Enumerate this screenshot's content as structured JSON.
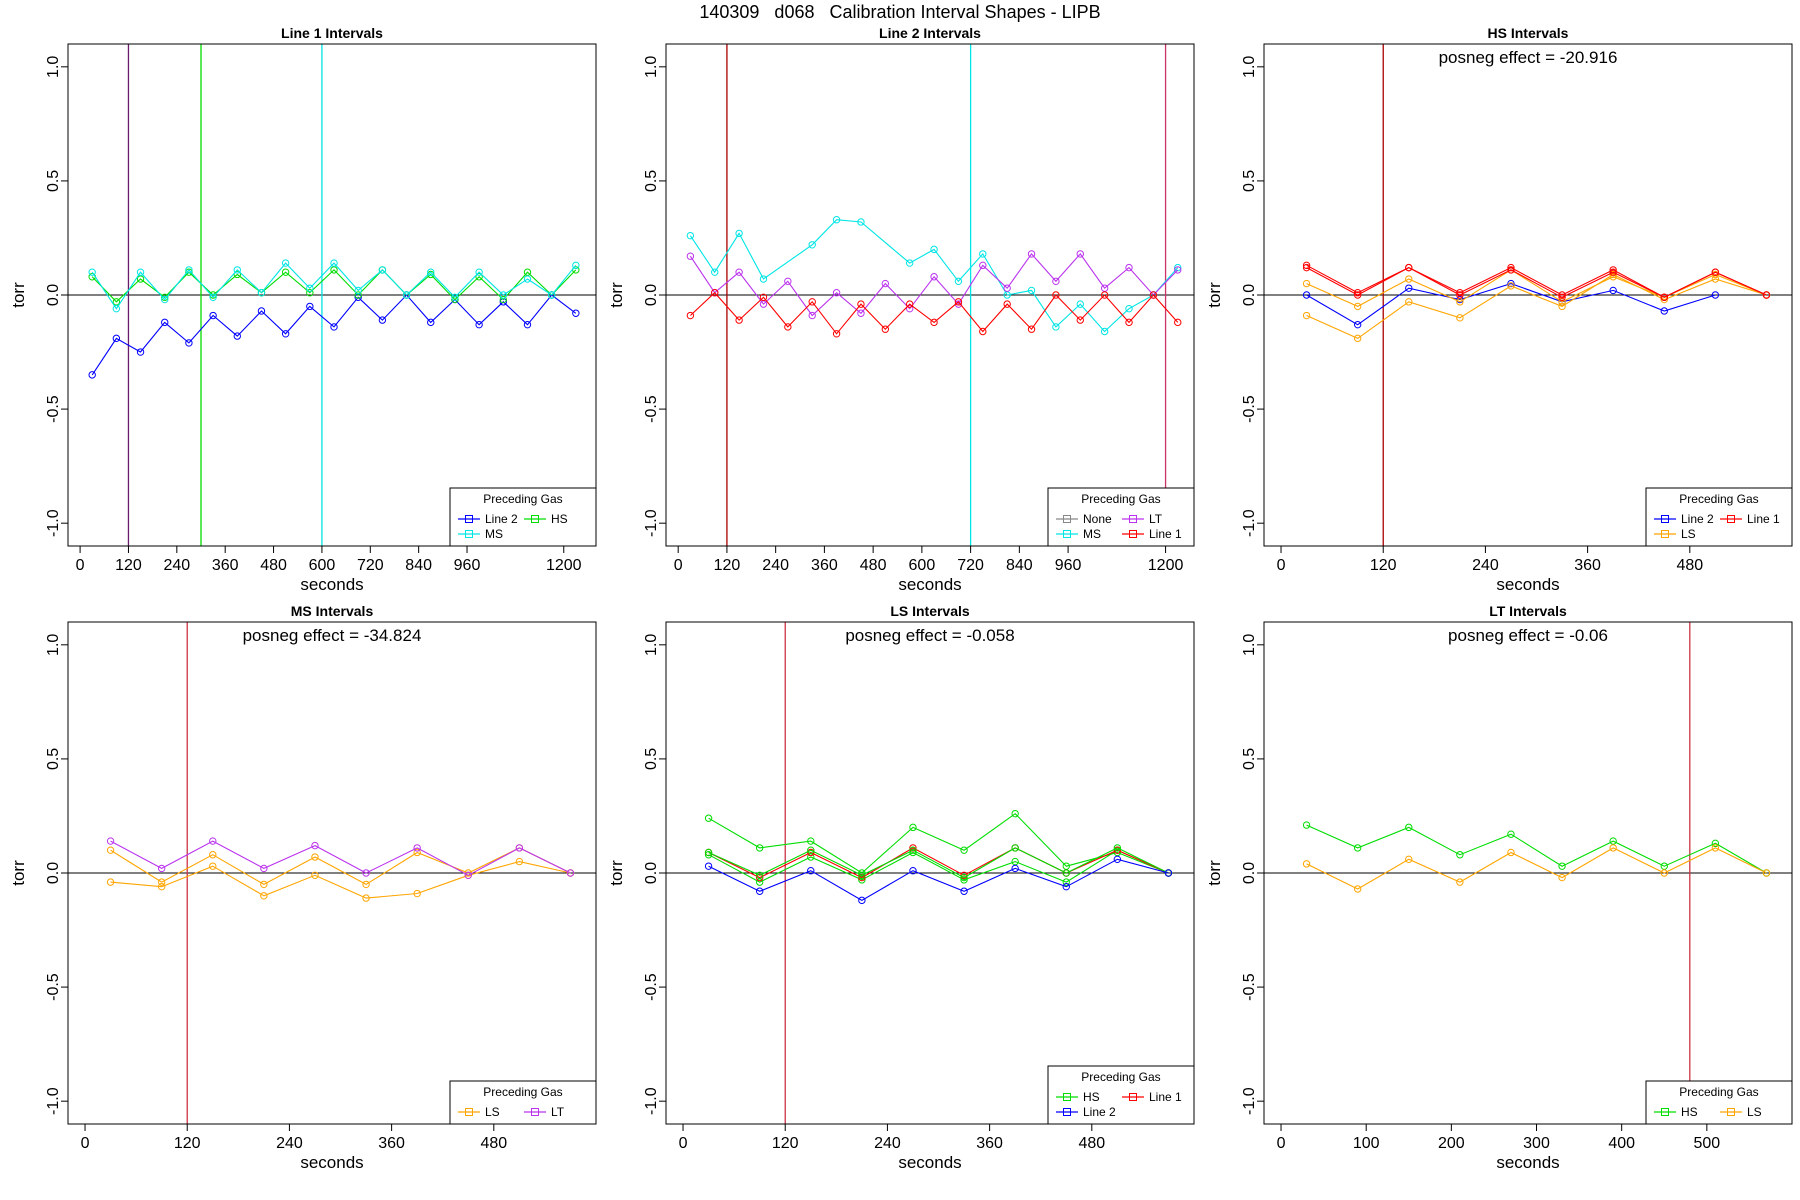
{
  "page_title": "140309   d068   Calibration Interval Shapes - LIPB",
  "colors": {
    "Line 2": "#0000ff",
    "HS": "#00dd00",
    "MS": "#00e5e5",
    "LT": "#bb33ee",
    "Line 1": "#ff0000",
    "LS": "#ffa500",
    "None": "#888888",
    "marker": "#aa0000"
  },
  "chart_data": [
    {
      "type": "line",
      "title": "Line 1 Intervals",
      "xlabel": "seconds",
      "ylabel": "torr",
      "xlim": [
        -30,
        1280
      ],
      "ylim": [
        -1.1,
        1.1
      ],
      "xticks": [
        0,
        120,
        240,
        360,
        480,
        600,
        720,
        840,
        960,
        1200
      ],
      "yticks": [
        -1.0,
        -0.5,
        0.0,
        0.5,
        1.0
      ],
      "posneg": "",
      "vlines": [
        {
          "x": 120,
          "color": "#6a1b6a"
        },
        {
          "x": 300,
          "color": "#00dd00"
        },
        {
          "x": 600,
          "color": "#00e5e5"
        }
      ],
      "legend": {
        "title": "Preceding Gas",
        "placement": "bottom-right",
        "cols": 2,
        "entries": [
          "Line 2",
          "HS",
          "MS"
        ]
      },
      "series": [
        {
          "name": "Line 2",
          "x": [
            30,
            90,
            150,
            210,
            270,
            330,
            390,
            450,
            510,
            570,
            630,
            690,
            750,
            810,
            870,
            930,
            990,
            1050,
            1110,
            1170,
            1230
          ],
          "y": [
            -0.35,
            -0.19,
            -0.25,
            -0.12,
            -0.21,
            -0.09,
            -0.18,
            -0.07,
            -0.17,
            -0.05,
            -0.14,
            -0.01,
            -0.11,
            0.0,
            -0.12,
            -0.02,
            -0.13,
            -0.03,
            -0.13,
            0.0,
            -0.08
          ]
        },
        {
          "name": "HS",
          "x": [
            30,
            90,
            150,
            210,
            270,
            330,
            390,
            450,
            510,
            570,
            630,
            690,
            750,
            810,
            870,
            930,
            990,
            1050,
            1110,
            1170,
            1230
          ],
          "y": [
            0.08,
            -0.03,
            0.07,
            -0.01,
            0.1,
            0.0,
            0.09,
            0.01,
            0.1,
            0.01,
            0.11,
            0.0,
            0.11,
            0.0,
            0.09,
            -0.02,
            0.08,
            -0.02,
            0.1,
            0.0,
            0.11
          ]
        },
        {
          "name": "MS",
          "x": [
            30,
            90,
            150,
            210,
            270,
            330,
            390,
            450,
            510,
            570,
            630,
            690,
            750,
            810,
            870,
            930,
            990,
            1050,
            1110,
            1170,
            1230
          ],
          "y": [
            0.1,
            -0.06,
            0.1,
            -0.02,
            0.11,
            -0.01,
            0.11,
            0.01,
            0.14,
            0.03,
            0.14,
            0.02,
            0.11,
            0.0,
            0.1,
            -0.01,
            0.1,
            0.0,
            0.07,
            0.0,
            0.13
          ]
        }
      ]
    },
    {
      "type": "line",
      "title": "Line 2 Intervals",
      "xlabel": "seconds",
      "ylabel": "torr",
      "xlim": [
        -30,
        1270
      ],
      "ylim": [
        -1.1,
        1.1
      ],
      "xticks": [
        0,
        120,
        240,
        360,
        480,
        600,
        720,
        840,
        960,
        1200
      ],
      "yticks": [
        -1.0,
        -0.5,
        0.0,
        0.5,
        1.0
      ],
      "posneg": "",
      "vlines": [
        {
          "x": 120,
          "color": "#aa0000"
        },
        {
          "x": 720,
          "color": "#00e5e5"
        },
        {
          "x": 1200,
          "color": "#cc3366"
        }
      ],
      "legend": {
        "title": "Preceding Gas",
        "placement": "bottom-right",
        "cols": 2,
        "entries": [
          "None",
          "LT",
          "MS",
          "Line 1"
        ]
      },
      "series": [
        {
          "name": "MS",
          "x": [
            30,
            90,
            150,
            210,
            330,
            390,
            450,
            570,
            630,
            690,
            750,
            810,
            870,
            930,
            990,
            1050,
            1110,
            1170,
            1230
          ],
          "y": [
            0.26,
            0.1,
            0.27,
            0.07,
            0.22,
            0.33,
            0.32,
            0.14,
            0.2,
            0.06,
            0.18,
            0.0,
            0.02,
            -0.14,
            -0.04,
            -0.16,
            -0.06,
            0.0,
            0.12
          ]
        },
        {
          "name": "LT",
          "x": [
            30,
            90,
            150,
            210,
            270,
            330,
            390,
            450,
            510,
            570,
            630,
            690,
            750,
            810,
            870,
            930,
            990,
            1050,
            1110,
            1170,
            1230
          ],
          "y": [
            0.17,
            0.01,
            0.1,
            -0.04,
            0.06,
            -0.09,
            0.01,
            -0.08,
            0.05,
            -0.06,
            0.08,
            -0.04,
            0.13,
            0.03,
            0.18,
            0.06,
            0.18,
            0.03,
            0.12,
            0.0,
            0.11
          ]
        },
        {
          "name": "Line 1",
          "x": [
            30,
            90,
            150,
            210,
            270,
            330,
            390,
            450,
            510,
            570,
            630,
            690,
            750,
            810,
            870,
            930,
            990,
            1050,
            1110,
            1170,
            1230
          ],
          "y": [
            -0.09,
            0.01,
            -0.11,
            -0.01,
            -0.14,
            -0.03,
            -0.17,
            -0.04,
            -0.15,
            -0.04,
            -0.12,
            -0.03,
            -0.16,
            -0.04,
            -0.15,
            0.0,
            -0.11,
            0.0,
            -0.12,
            0.0,
            -0.12
          ]
        }
      ]
    },
    {
      "type": "line",
      "title": "HS Intervals",
      "xlabel": "seconds",
      "ylabel": "torr",
      "xlim": [
        -20,
        600
      ],
      "ylim": [
        -1.1,
        1.1
      ],
      "xticks": [
        0,
        120,
        240,
        360,
        480
      ],
      "yticks": [
        -1.0,
        -0.5,
        0.0,
        0.5,
        1.0
      ],
      "posneg": "posneg effect = -20.916",
      "vlines": [
        {
          "x": 120,
          "color": "#aa0000"
        }
      ],
      "legend": {
        "title": "Preceding Gas",
        "placement": "bottom-right",
        "cols": 2,
        "entries": [
          "Line 2",
          "Line 1",
          "LS"
        ]
      },
      "series": [
        {
          "name": "Line 2",
          "x": [
            30,
            90,
            150,
            210,
            270,
            330,
            390,
            450,
            510
          ],
          "y": [
            0.0,
            -0.13,
            0.03,
            -0.02,
            0.05,
            -0.03,
            0.02,
            -0.07,
            0.0
          ]
        },
        {
          "name": "LS",
          "x": [
            30,
            90,
            150,
            210,
            270,
            330,
            390,
            450,
            510,
            570
          ],
          "y": [
            -0.09,
            -0.19,
            -0.03,
            -0.1,
            0.04,
            -0.05,
            0.09,
            -0.02,
            0.07,
            0.0
          ]
        },
        {
          "name": "LS",
          "x": [
            30,
            90,
            150,
            210,
            270,
            330,
            390,
            450,
            510,
            570
          ],
          "y": [
            0.05,
            -0.05,
            0.07,
            -0.03,
            0.11,
            -0.03,
            0.08,
            -0.01,
            0.09,
            0.0
          ]
        },
        {
          "name": "Line 1",
          "x": [
            30,
            90,
            150,
            210,
            270,
            330,
            390,
            450,
            510,
            570
          ],
          "y": [
            0.12,
            0.0,
            0.12,
            0.0,
            0.11,
            -0.01,
            0.1,
            -0.01,
            0.1,
            0.0
          ]
        },
        {
          "name": "Line 1",
          "x": [
            30,
            90,
            150,
            210,
            270,
            330,
            390,
            450,
            510,
            570
          ],
          "y": [
            0.13,
            0.01,
            0.12,
            0.01,
            0.12,
            0.0,
            0.11,
            -0.01,
            0.1,
            0.0
          ]
        }
      ]
    },
    {
      "type": "line",
      "title": "MS Intervals",
      "xlabel": "seconds",
      "ylabel": "torr",
      "xlim": [
        -20,
        600
      ],
      "ylim": [
        -1.1,
        1.1
      ],
      "xticks": [
        0,
        120,
        240,
        360,
        480
      ],
      "yticks": [
        -1.0,
        -0.5,
        0.0,
        0.5,
        1.0
      ],
      "posneg": "posneg effect = -34.824",
      "vlines": [
        {
          "x": 120,
          "color": "#cc3344"
        }
      ],
      "legend": {
        "title": "Preceding Gas",
        "placement": "bottom-right",
        "cols": 2,
        "entries": [
          "LS",
          "LT"
        ]
      },
      "series": [
        {
          "name": "LS",
          "x": [
            30,
            90,
            150,
            210,
            270,
            330,
            390,
            450,
            510,
            570
          ],
          "y": [
            -0.04,
            -0.06,
            0.03,
            -0.1,
            -0.01,
            -0.11,
            -0.09,
            -0.01,
            0.05,
            0.0
          ]
        },
        {
          "name": "LS",
          "x": [
            30,
            90,
            150,
            210,
            270,
            330,
            390,
            450,
            510,
            570
          ],
          "y": [
            0.1,
            -0.04,
            0.08,
            -0.05,
            0.07,
            -0.05,
            0.09,
            0.0,
            0.11,
            0.0
          ]
        },
        {
          "name": "LT",
          "x": [
            30,
            90,
            150,
            210,
            270,
            330,
            390,
            450,
            510,
            570
          ],
          "y": [
            0.14,
            0.02,
            0.14,
            0.02,
            0.12,
            0.0,
            0.11,
            -0.01,
            0.11,
            0.0
          ]
        }
      ]
    },
    {
      "type": "line",
      "title": "LS Intervals",
      "xlabel": "seconds",
      "ylabel": "torr",
      "xlim": [
        -20,
        600
      ],
      "ylim": [
        -1.1,
        1.1
      ],
      "xticks": [
        0,
        120,
        240,
        360,
        480
      ],
      "yticks": [
        -1.0,
        -0.5,
        0.0,
        0.5,
        1.0
      ],
      "posneg": "posneg effect = -0.058",
      "vlines": [
        {
          "x": 120,
          "color": "#cc3344"
        }
      ],
      "legend": {
        "title": "Preceding Gas",
        "placement": "bottom-right",
        "cols": 2,
        "entries": [
          "HS",
          "Line 1",
          "Line 2"
        ]
      },
      "series": [
        {
          "name": "HS",
          "x": [
            30,
            90,
            150,
            210,
            270,
            330,
            390,
            450,
            510,
            570
          ],
          "y": [
            0.24,
            0.11,
            0.14,
            0.0,
            0.2,
            0.1,
            0.26,
            0.03,
            0.09,
            0.0
          ]
        },
        {
          "name": "HS",
          "x": [
            30,
            90,
            150,
            210,
            270,
            330,
            390,
            450,
            510,
            570
          ],
          "y": [
            0.08,
            -0.04,
            0.07,
            -0.03,
            0.09,
            -0.03,
            0.05,
            -0.04,
            0.1,
            0.0
          ]
        },
        {
          "name": "Line 1",
          "x": [
            30,
            90,
            150,
            210,
            270,
            330,
            390,
            450,
            510,
            570
          ],
          "y": [
            0.09,
            -0.02,
            0.09,
            -0.02,
            0.11,
            -0.01,
            0.11,
            0.0,
            0.1,
            0.0
          ]
        },
        {
          "name": "HS",
          "x": [
            30,
            90,
            150,
            210,
            270,
            330,
            390,
            450,
            510,
            570
          ],
          "y": [
            0.09,
            -0.01,
            0.1,
            -0.01,
            0.1,
            -0.02,
            0.11,
            0.0,
            0.11,
            0.0
          ]
        },
        {
          "name": "Line 2",
          "x": [
            30,
            90,
            150,
            210,
            270,
            330,
            390,
            450,
            510,
            570
          ],
          "y": [
            0.03,
            -0.08,
            0.01,
            -0.12,
            0.01,
            -0.08,
            0.02,
            -0.06,
            0.06,
            0.0
          ]
        }
      ]
    },
    {
      "type": "line",
      "title": "LT Intervals",
      "xlabel": "seconds",
      "ylabel": "torr",
      "xlim": [
        -20,
        600
      ],
      "ylim": [
        -1.1,
        1.1
      ],
      "xticks": [
        0,
        100,
        200,
        300,
        400,
        500
      ],
      "yticks": [
        -1.0,
        -0.5,
        0.0,
        0.5,
        1.0
      ],
      "posneg": "posneg effect = -0.06",
      "vlines": [
        {
          "x": 480,
          "color": "#cc3344"
        }
      ],
      "legend": {
        "title": "Preceding Gas",
        "placement": "bottom-right",
        "cols": 2,
        "entries": [
          "HS",
          "LS"
        ]
      },
      "series": [
        {
          "name": "HS",
          "x": [
            30,
            90,
            150,
            210,
            270,
            330,
            390,
            450,
            510,
            570
          ],
          "y": [
            0.21,
            0.11,
            0.2,
            0.08,
            0.17,
            0.03,
            0.14,
            0.03,
            0.13,
            0.0
          ]
        },
        {
          "name": "LS",
          "x": [
            30,
            90,
            150,
            210,
            270,
            330,
            390,
            450,
            510,
            570
          ],
          "y": [
            0.04,
            -0.07,
            0.06,
            -0.04,
            0.09,
            -0.02,
            0.11,
            0.0,
            0.11,
            0.0
          ]
        }
      ]
    }
  ]
}
